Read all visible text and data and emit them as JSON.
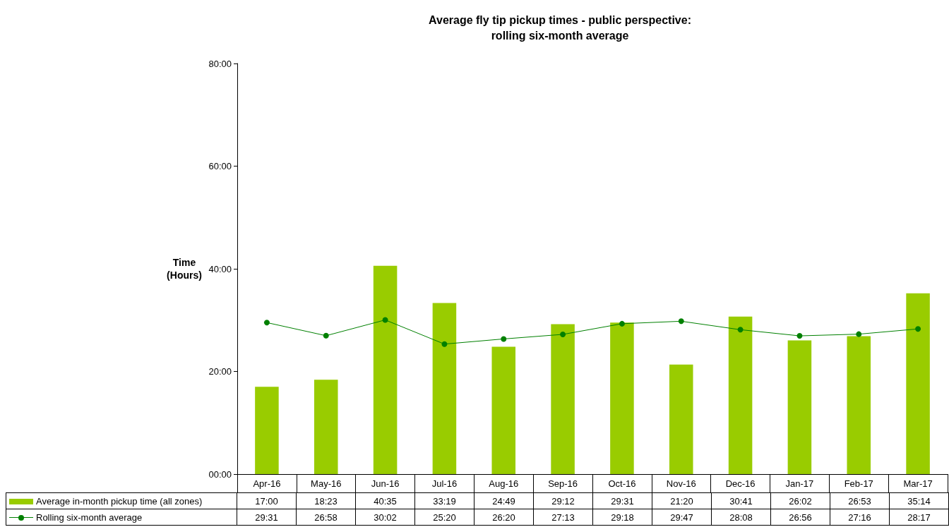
{
  "chart_data": {
    "type": "bar",
    "title": "Average fly tip pickup times - public perspective:\nrolling six-month average",
    "ylabel": "Time\n(Hours)",
    "categories": [
      "Apr-16",
      "May-16",
      "Jun-16",
      "Jul-16",
      "Aug-16",
      "Sep-16",
      "Oct-16",
      "Nov-16",
      "Dec-16",
      "Jan-17",
      "Feb-17",
      "Mar-17"
    ],
    "series": [
      {
        "name": "Average in-month pickup time (all zones)",
        "color": "#99cc00",
        "values": [
          17,
          18.383,
          40.583,
          33.317,
          24.817,
          29.2,
          29.517,
          21.333,
          30.683,
          26.033,
          26.883,
          35.233
        ],
        "value_labels": [
          "17:00",
          "18:23",
          "40:35",
          "33:19",
          "24:49",
          "29:12",
          "29:31",
          "21:20",
          "30:41",
          "26:02",
          "26:53",
          "35:14"
        ]
      },
      {
        "name": "Rolling six-month average",
        "type": "line",
        "color": "#008000",
        "values": [
          29.517,
          26.967,
          30.033,
          25.333,
          26.333,
          27.217,
          29.3,
          29.783,
          28.133,
          26.933,
          27.267,
          28.283
        ],
        "value_labels": [
          "29:31",
          "26:58",
          "30:02",
          "25:20",
          "26:20",
          "27:13",
          "29:18",
          "29:47",
          "28:08",
          "26:56",
          "27:16",
          "28:17"
        ]
      }
    ],
    "ylim": [
      0,
      80
    ],
    "yticks": [
      {
        "value": 0,
        "label": "00:00"
      },
      {
        "value": 20,
        "label": "20:00"
      },
      {
        "value": 40,
        "label": "40:00"
      },
      {
        "value": 60,
        "label": "60:00"
      },
      {
        "value": 80,
        "label": "80:00"
      }
    ],
    "grid": false,
    "legend": "bottom",
    "marker": "circle",
    "line_style": "solid"
  }
}
